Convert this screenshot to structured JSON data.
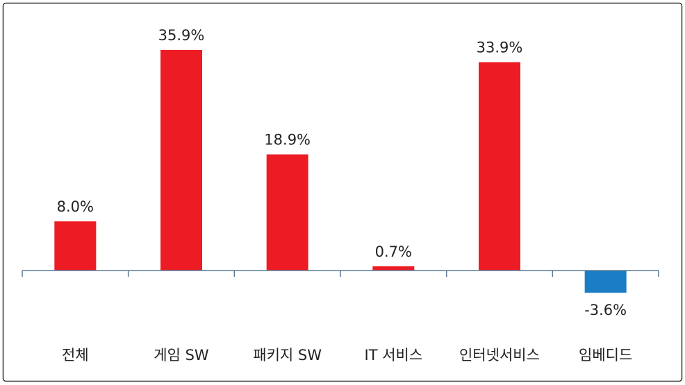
{
  "chart_data": {
    "type": "bar",
    "categories": [
      "전체",
      "게임 SW",
      "패키지 SW",
      "IT 서비스",
      "인터넷서비스",
      "임베디드"
    ],
    "values": [
      8.0,
      35.9,
      18.9,
      0.7,
      33.9,
      -3.6
    ],
    "value_labels": [
      "8.0%",
      "35.9%",
      "18.9%",
      "0.7%",
      "33.9%",
      "-3.6%"
    ],
    "colors": [
      "#ed1c24",
      "#ed1c24",
      "#ed1c24",
      "#ed1c24",
      "#ed1c24",
      "#1b7dc4"
    ],
    "ylim": [
      -5,
      40
    ]
  }
}
